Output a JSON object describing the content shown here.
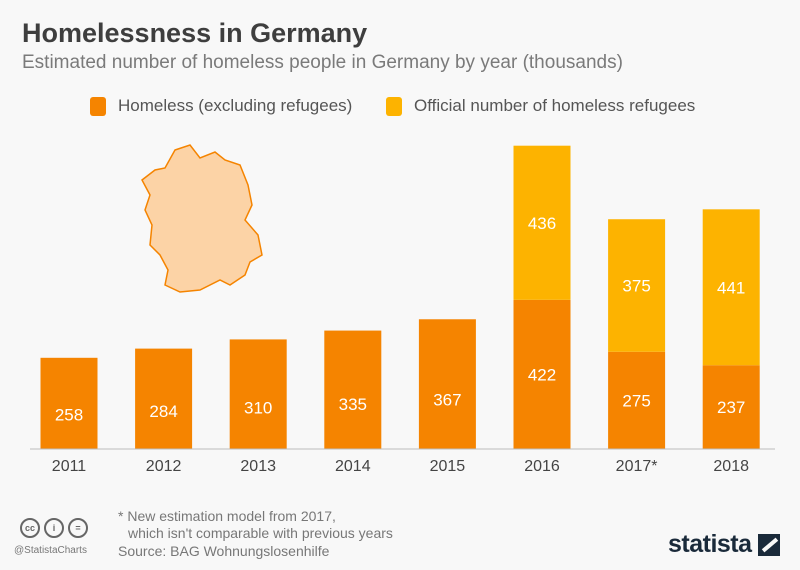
{
  "chart_data": {
    "type": "bar",
    "stacked": true,
    "title": "Homelessness in Germany",
    "subtitle": "Estimated number of homeless people in Germany by year (thousands)",
    "categories": [
      "2011",
      "2012",
      "2013",
      "2014",
      "2015",
      "2016",
      "2017*",
      "2018"
    ],
    "series": [
      {
        "name": "Homeless (excluding refugees)",
        "color": "#f58400",
        "values": [
          258,
          284,
          310,
          335,
          367,
          422,
          275,
          237
        ]
      },
      {
        "name": "Official number of homeless refugees",
        "color": "#fdb300",
        "values": [
          null,
          null,
          null,
          null,
          null,
          436,
          375,
          441
        ]
      }
    ],
    "ylim": [
      0,
      900
    ],
    "grid": false,
    "legend": "top"
  },
  "footer": {
    "note_line1": "* New estimation model from 2017,",
    "note_line2": "which isn't comparable with previous years",
    "source": "Source: BAG Wohnungslosenhilfe",
    "handle": "@StatistaCharts",
    "brand": "statista",
    "cc_icons": [
      "cc",
      "by",
      "nd"
    ]
  }
}
